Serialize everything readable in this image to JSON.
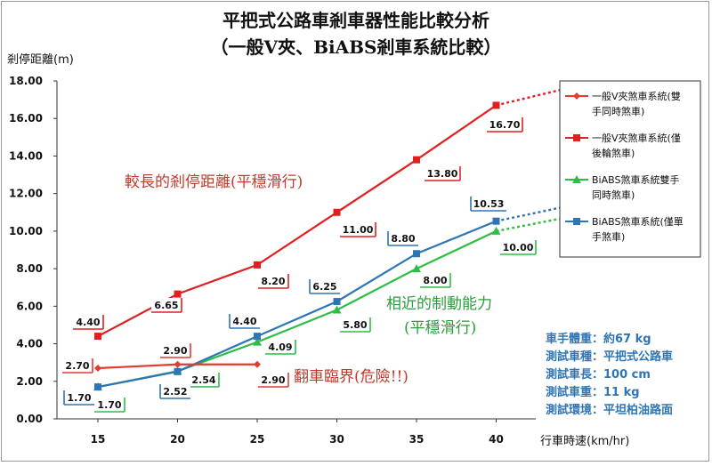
{
  "chart_data": {
    "type": "line",
    "title_line1": "平把式公路車剎車器性能比較分析",
    "title_line2": "（一般V夾、BiABS剎車系統比較）",
    "ylabel": "剎停距離(m)",
    "xlabel": "行車時速(km/hr)",
    "x": [
      15,
      20,
      25,
      30,
      35,
      40
    ],
    "ylim": [
      0,
      18
    ],
    "yticks": [
      "0.00",
      "2.00",
      "4.00",
      "6.00",
      "8.00",
      "10.00",
      "12.00",
      "14.00",
      "16.00",
      "18.00"
    ],
    "series": [
      {
        "name": "一般V夾煞車系統(雙手同時煞車)",
        "color": "#e03c31",
        "marker": "diamond",
        "x": [
          15,
          20,
          25
        ],
        "values": [
          2.7,
          2.9,
          2.9
        ],
        "labels": [
          "2.70",
          "2.90",
          "2.90"
        ]
      },
      {
        "name": "一般V夾煞車系統(僅後輪煞車)",
        "color": "#e02020",
        "marker": "square",
        "x": [
          15,
          20,
          25,
          30,
          35,
          40
        ],
        "values": [
          4.4,
          6.65,
          8.2,
          11.0,
          13.8,
          16.7
        ],
        "labels": [
          "4.40",
          "6.65",
          "8.20",
          "11.00",
          "13.80",
          "16.70"
        ],
        "trend_to": 17.75
      },
      {
        "name": "BiABS煞車系統(雙手同時煞車)",
        "color": "#2fbe45",
        "marker": "triangle",
        "x": [
          15,
          20,
          25,
          30,
          35,
          40
        ],
        "values": [
          1.7,
          2.54,
          4.09,
          5.8,
          8.0,
          10.0
        ],
        "labels": [
          "1.70",
          "2.54",
          "4.09",
          "5.80",
          "8.00",
          "10.00"
        ],
        "trend_to": 10.85
      },
      {
        "name": "BiABS煞車系統(僅單手煞車)",
        "color": "#2e75b6",
        "marker": "square",
        "x": [
          15,
          20,
          25,
          30,
          35,
          40
        ],
        "values": [
          1.7,
          2.52,
          4.4,
          6.25,
          8.8,
          10.53
        ],
        "labels": [
          "1.70",
          "2.52",
          "4.40",
          "6.25",
          "8.80",
          "10.53"
        ],
        "trend_to": 11.45
      }
    ],
    "legend_entries": [
      [
        "一般V夾煞車系統(雙",
        "手同時煞車)"
      ],
      [
        "一般V夾煞車系統(僅",
        "後輪煞車)"
      ],
      [
        "BiABS煞車系統雙手",
        "同時煞車)"
      ],
      [
        "BiABS煞車系統(僅單",
        "手煞車)"
      ]
    ],
    "legend_placement": "right",
    "grid": false
  },
  "annotations": {
    "long_distance": "較長的剎停距離(平穩滑行)",
    "similar_braking_1": "相近的制動能力",
    "similar_braking_2": "(平穩滑行)",
    "rollover": "翻車臨界(危險!!)"
  },
  "info_box": [
    "車手體重：約67 kg",
    "測試車種：平把式公路車",
    "測試車長：100 cm",
    "測試車重：11 kg",
    "測試環境：平坦柏油路面"
  ],
  "colors": {
    "red": "#e02020",
    "green": "#2fbe45",
    "blue": "#2e75b6",
    "info": "#2e75b6"
  }
}
